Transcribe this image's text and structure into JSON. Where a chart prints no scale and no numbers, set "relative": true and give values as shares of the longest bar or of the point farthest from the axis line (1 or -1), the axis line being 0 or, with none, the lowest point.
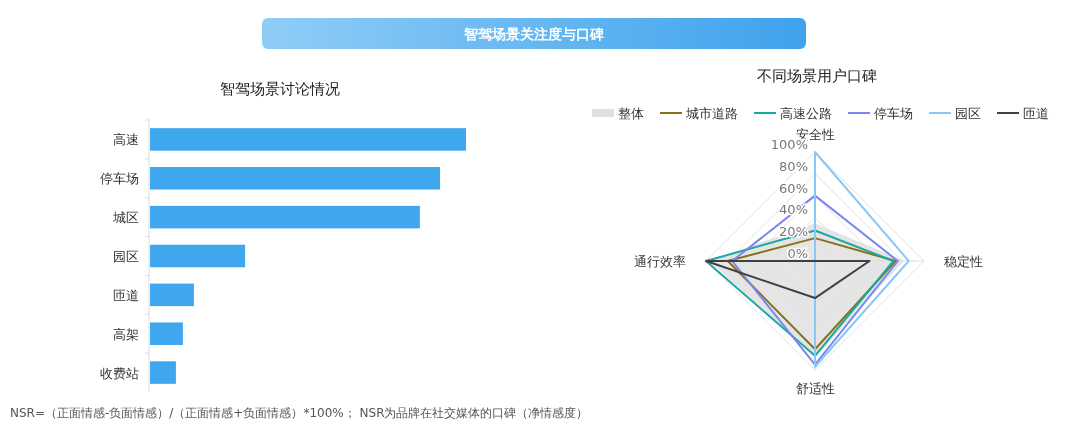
{
  "chart_data": [
    {
      "type": "bar",
      "title": "智驾场景讨论情况",
      "orientation": "horizontal",
      "relative": true,
      "color": "#3fa7ee",
      "categories": [
        "高速",
        "停车场",
        "城区",
        "园区",
        "匝道",
        "高架",
        "收费站"
      ],
      "values": [
        1,
        0.918,
        0.854,
        0.301,
        0.139,
        0.104,
        0.082
      ],
      "annotations": [
        "智驾场景关注度与口碑",
        "NSR=（正面情感-负面情感）/（正面情感+负面情感）*100%；  NSR为品牌在社交媒体的口碑（净情感度）"
      ]
    },
    {
      "type": "radar",
      "title": "不同场景用户口碑",
      "legend": "top",
      "categories": [
        "安全性",
        "稳定性",
        "舒适性",
        "通行效率"
      ],
      "ylim": [
        0,
        100
      ],
      "yticks": [
        {
          "value": 0,
          "label": "0%"
        },
        {
          "value": 20,
          "label": "20%"
        },
        {
          "value": 40,
          "label": "40%"
        },
        {
          "value": 60,
          "label": "60%"
        },
        {
          "value": 80,
          "label": "80%"
        },
        {
          "value": 100,
          "label": "100%"
        }
      ],
      "series": [
        {
          "name": "整体",
          "type": "area",
          "color": "#e0e0e0",
          "values": [
            34,
            81,
            88,
            96
          ]
        },
        {
          "name": "城市道路",
          "color": "#8b6f1a",
          "values": [
            21,
            74,
            81,
            80
          ]
        },
        {
          "name": "高速公路",
          "color": "#1aa9a0",
          "values": [
            28,
            72,
            87,
            100
          ]
        },
        {
          "name": "停车场",
          "color": "#7b86f0",
          "values": [
            60,
            76,
            95,
            76
          ]
        },
        {
          "name": "园区",
          "color": "#88c8f5",
          "values": [
            100,
            86,
            97,
            0
          ]
        },
        {
          "name": "匝道",
          "color": "#404040",
          "values": [
            0,
            50,
            34,
            100
          ]
        }
      ]
    }
  ]
}
